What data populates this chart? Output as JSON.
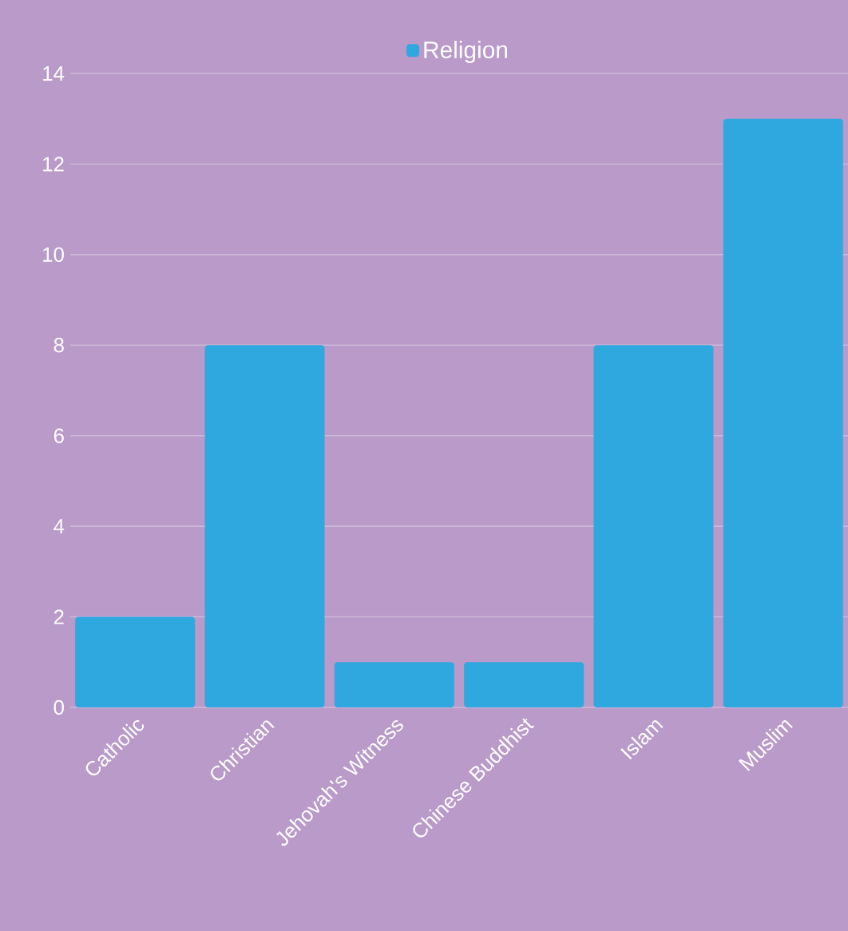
{
  "chart_data": {
    "type": "bar",
    "categories": [
      "Catholic",
      "Christian",
      "Jehovah's Witness",
      "Chinese Buddhist",
      "Islam",
      "Muslim"
    ],
    "series": [
      {
        "name": "Religion",
        "color": "#2fa8e0",
        "values": [
          2,
          8,
          1,
          1,
          8,
          13
        ]
      }
    ],
    "ylim": [
      0,
      14
    ],
    "yticks": [
      0,
      2,
      4,
      6,
      8,
      10,
      12,
      14
    ],
    "grid": "y",
    "legend": "top"
  }
}
